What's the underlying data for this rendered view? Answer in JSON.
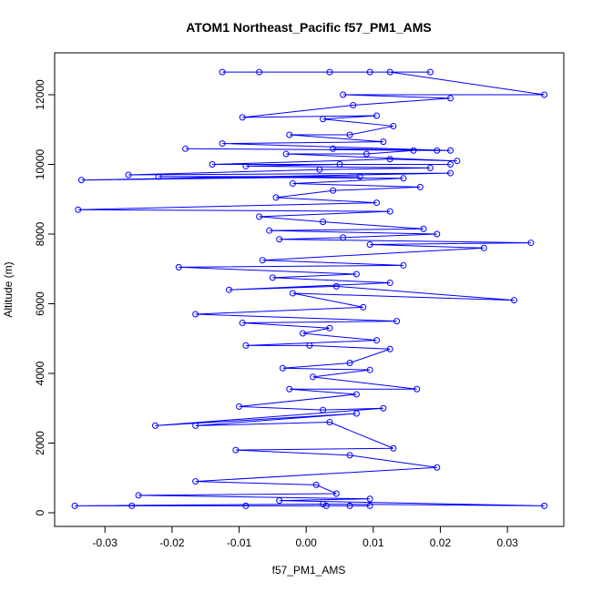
{
  "chart_data": {
    "type": "line",
    "title": "ATOM1 Northeast_Pacific f57_PM1_AMS",
    "x_label": "f57_PM1_AMS",
    "y_label": "Altitude (m)",
    "x": [
      -0.0125,
      0.0185,
      0.0095,
      -0.007,
      0.0035,
      0.0125,
      0.0355,
      0.0055,
      0.0215,
      0.007,
      -0.0095,
      0.0105,
      0.0025,
      0.013,
      0.0065,
      -0.0025,
      0.0115,
      -0.0125,
      0.0215,
      -0.018,
      0.0195,
      0.004,
      0.016,
      0.009,
      -0.003,
      0.0225,
      0.0125,
      -0.014,
      0.0215,
      0.005,
      -0.009,
      0.0185,
      0.002,
      -0.0265,
      0.0215,
      -0.0335,
      0.008,
      -0.022,
      0.0145,
      -0.002,
      0.017,
      0.004,
      -0.0045,
      0.0105,
      -0.034,
      0.0125,
      -0.007,
      0.0025,
      0.0175,
      -0.0055,
      0.0195,
      0.0055,
      -0.004,
      0.0335,
      0.0095,
      0.0265,
      -0.0065,
      0.0145,
      -0.019,
      0.0075,
      -0.005,
      0.0125,
      -0.0115,
      0.0045,
      0.031,
      -0.002,
      0.0085,
      -0.0165,
      0.0135,
      -0.0095,
      0.0035,
      -0.0005,
      0.0105,
      -0.009,
      0.0005,
      0.0125,
      0.0065,
      -0.0035,
      0.0095,
      0.001,
      0.0165,
      -0.0025,
      0.0075,
      -0.01,
      0.0025,
      0.0115,
      -0.0225,
      0.0075,
      -0.0165,
      0.0035,
      0.013,
      -0.0105,
      0.0065,
      0.0195,
      -0.0165,
      0.0015,
      0.0045,
      -0.025,
      0.0095,
      -0.004,
      0.0355,
      0.0025,
      -0.0345,
      0.0065,
      -0.009,
      0.003,
      -0.026,
      0.0095
    ],
    "series": [
      {
        "color": "#0000ff",
        "values": [
          12650,
          12650,
          12650,
          12650,
          12650,
          12650,
          12000,
          12000,
          11900,
          11700,
          11350,
          11400,
          11300,
          11100,
          10850,
          10850,
          10650,
          10600,
          10400,
          10450,
          10400,
          10450,
          10400,
          10300,
          10300,
          10100,
          10150,
          10000,
          10000,
          10000,
          9950,
          9900,
          9850,
          9700,
          9750,
          9550,
          9650,
          9650,
          9600,
          9450,
          9350,
          9250,
          9050,
          8900,
          8700,
          8650,
          8500,
          8350,
          8150,
          8100,
          8000,
          7900,
          7850,
          7750,
          7700,
          7600,
          7250,
          7100,
          7050,
          6850,
          6750,
          6600,
          6400,
          6500,
          6100,
          6300,
          5900,
          5700,
          5500,
          5450,
          5300,
          5150,
          4950,
          4800,
          4800,
          4700,
          4300,
          4150,
          4100,
          3900,
          3550,
          3550,
          3400,
          3050,
          2950,
          3000,
          2500,
          2850,
          2500,
          2600,
          1850,
          1800,
          1650,
          1300,
          900,
          800,
          550,
          500,
          400,
          350,
          200,
          250,
          200,
          200,
          200,
          200,
          200,
          200
        ]
      }
    ],
    "xlim": [
      -0.0375,
      0.0384
    ],
    "ylim": [
      -392,
      13203
    ],
    "xticks": [
      -0.03,
      -0.02,
      -0.01,
      {
        "value": 0,
        "label": "0.00"
      },
      0.01,
      0.02,
      0.03
    ],
    "yticks": [
      0,
      2000,
      4000,
      6000,
      8000,
      10000,
      12000
    ]
  }
}
